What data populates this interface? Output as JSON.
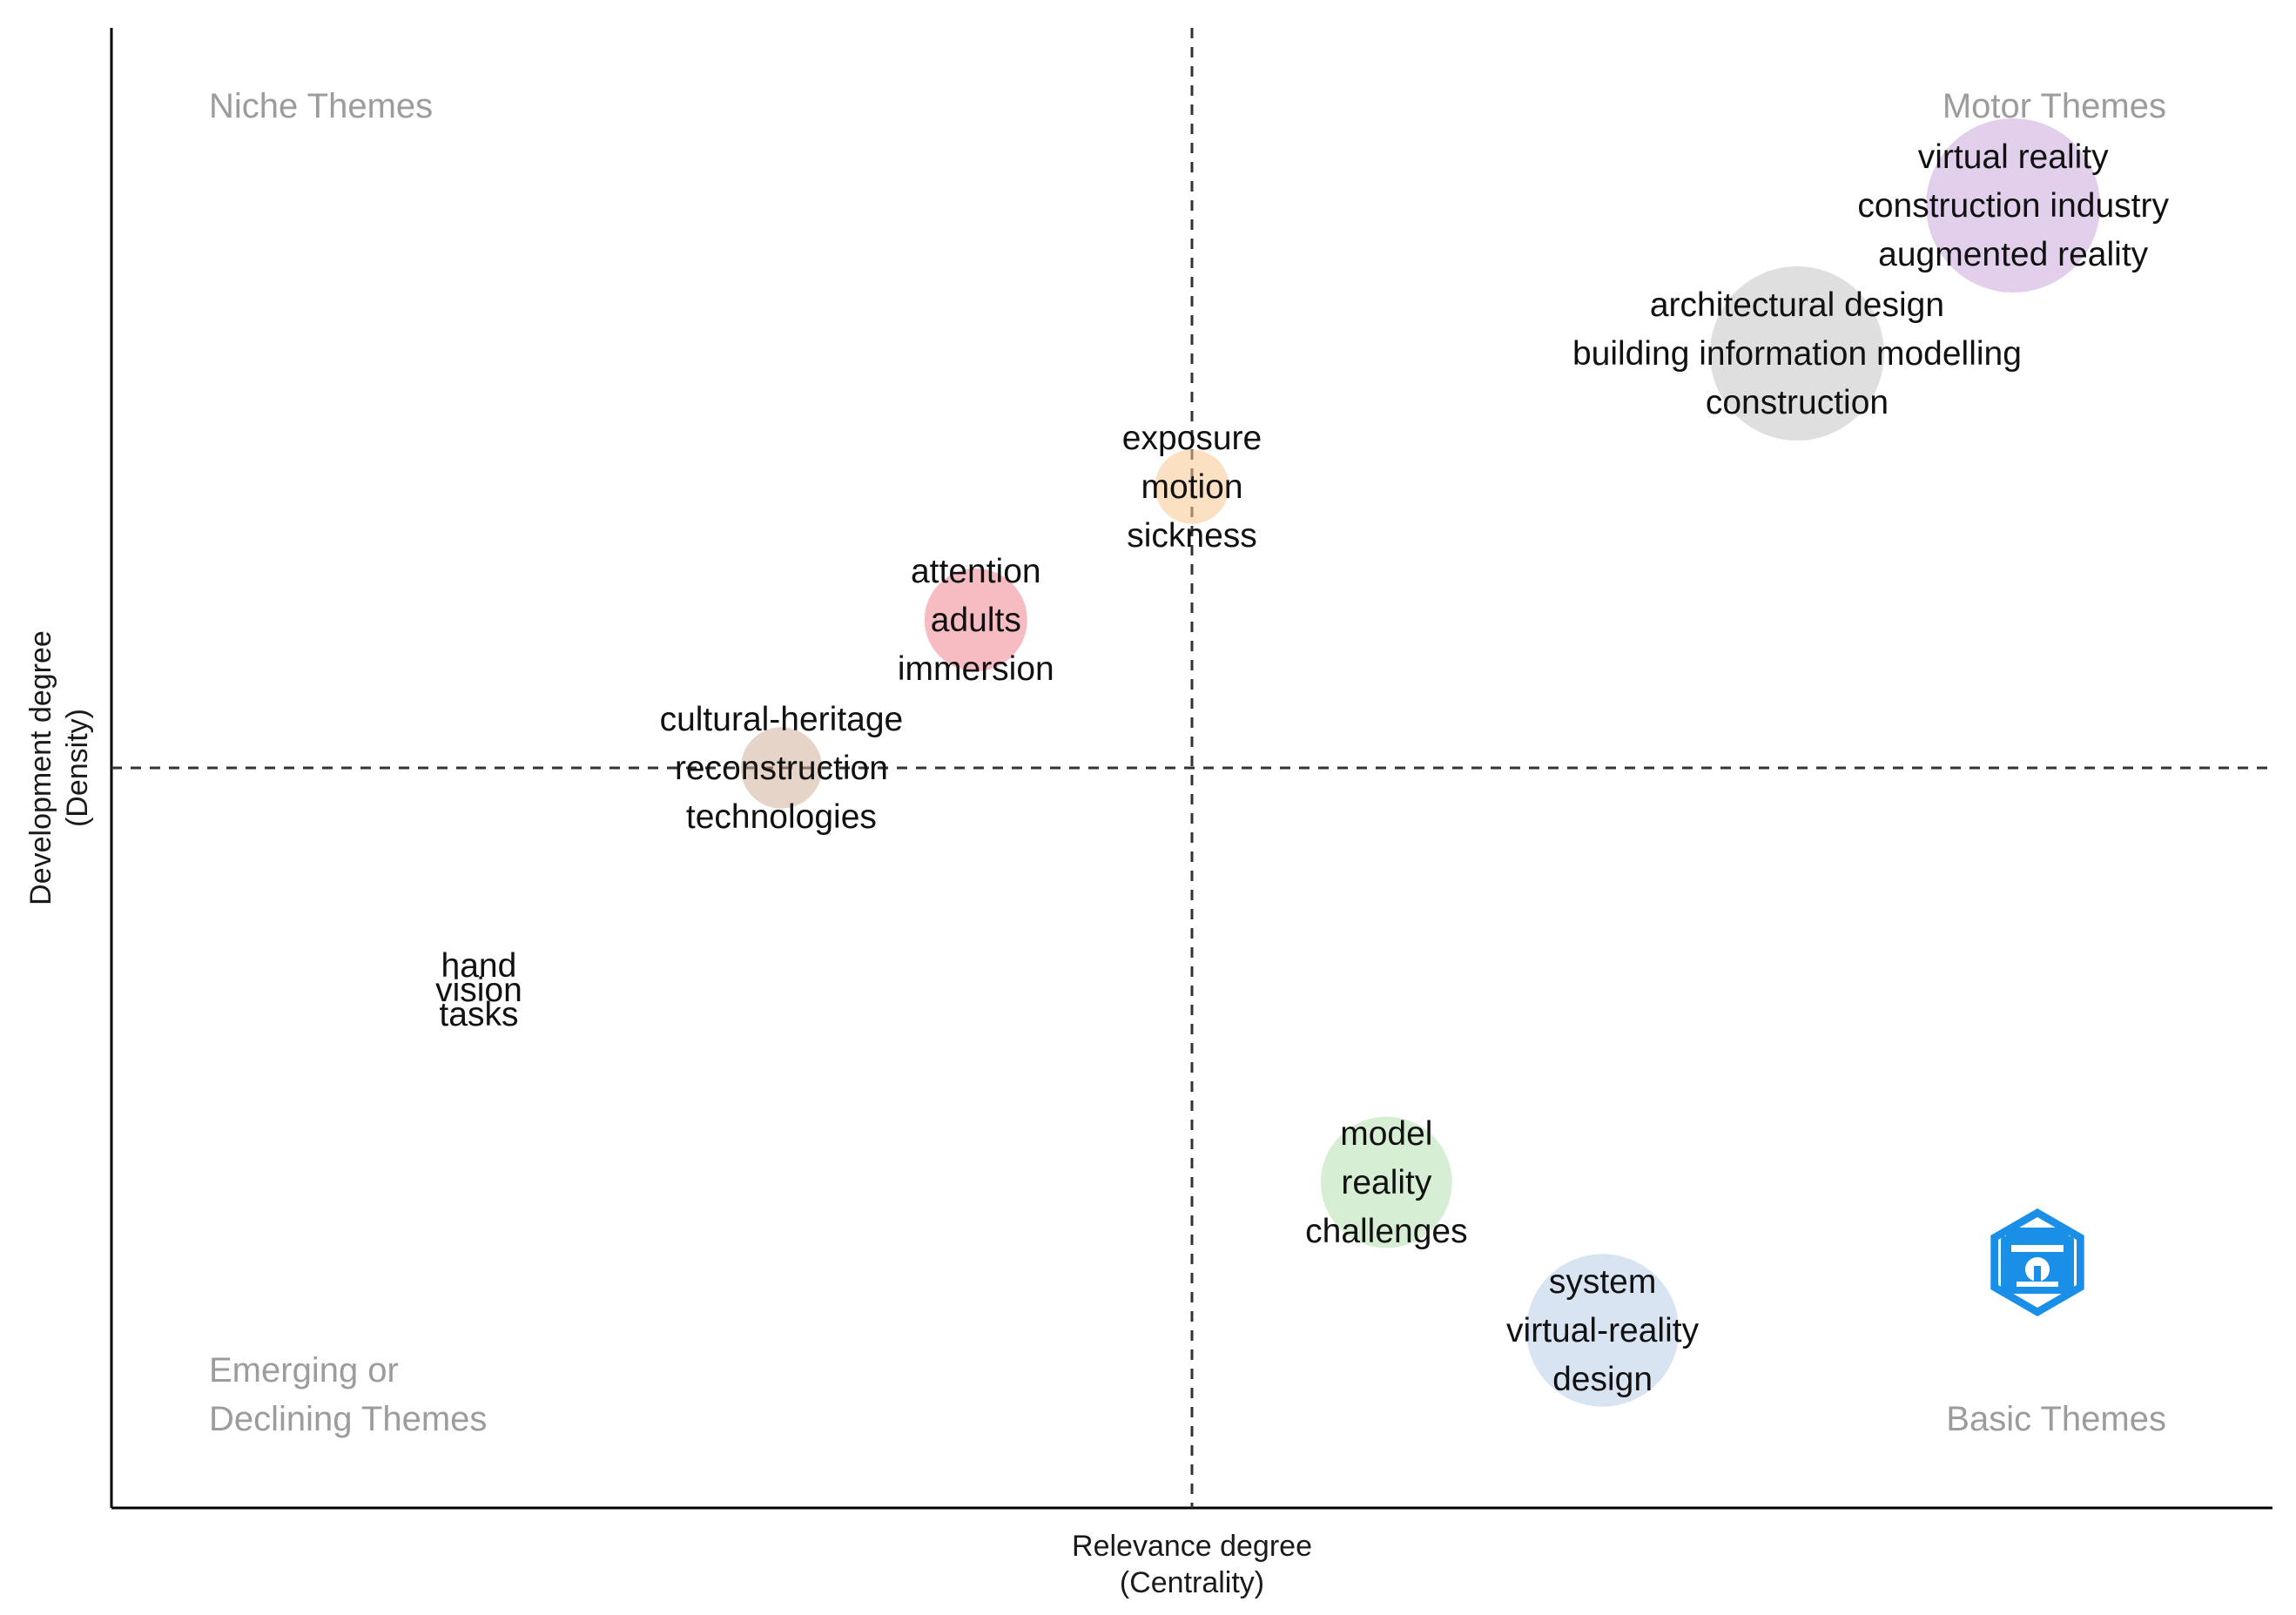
{
  "chart_data": {
    "type": "scatter",
    "subtype": "thematic-map",
    "xlabel": [
      "Relevance degree",
      "(Centrality)"
    ],
    "ylabel": [
      "Development degree",
      "(Density)"
    ],
    "xlim": [
      0,
      1
    ],
    "ylim": [
      0,
      1
    ],
    "reference_lines": {
      "x": 0.5,
      "y": 0.5,
      "style": "dashed"
    },
    "axis_ticks": false,
    "grid": false,
    "quadrants": [
      {
        "position": "top-left",
        "lines": [
          "Niche Themes"
        ]
      },
      {
        "position": "top-right",
        "lines": [
          "Motor Themes"
        ]
      },
      {
        "position": "bottom-left",
        "lines": [
          "Emerging or",
          "Declining Themes"
        ]
      },
      {
        "position": "bottom-right",
        "lines": [
          "Basic Themes"
        ]
      }
    ],
    "clusters": [
      {
        "x": 0.88,
        "y": 0.88,
        "size": 1.0,
        "color": "#c9a8dc",
        "terms": [
          "virtual reality",
          "construction industry",
          "augmented reality"
        ]
      },
      {
        "x": 0.78,
        "y": 0.78,
        "size": 1.0,
        "color": "#c4c4c4",
        "terms": [
          "architectural design",
          "building information modelling",
          "construction"
        ]
      },
      {
        "x": 0.5,
        "y": 0.69,
        "size": 0.3,
        "color": "#f7c98f",
        "terms": [
          "exposure",
          "motion",
          "sickness"
        ]
      },
      {
        "x": 0.4,
        "y": 0.6,
        "size": 0.5,
        "color": "#f0848f",
        "terms": [
          "attention",
          "adults",
          "immersion"
        ]
      },
      {
        "x": 0.31,
        "y": 0.5,
        "size": 0.35,
        "color": "#d4b09a",
        "terms": [
          "cultural-heritage",
          "reconstruction",
          "technologies"
        ]
      },
      {
        "x": 0.17,
        "y": 0.35,
        "size": 0.0,
        "color": "#b0b0b0",
        "terms": [
          "hand",
          "vision",
          "tasks"
        ]
      },
      {
        "x": 0.59,
        "y": 0.22,
        "size": 0.7,
        "color": "#b5e2b0",
        "terms": [
          "model",
          "reality",
          "challenges"
        ]
      },
      {
        "x": 0.69,
        "y": 0.12,
        "size": 0.85,
        "color": "#b8cde6",
        "terms": [
          "system",
          "virtual-reality",
          "design"
        ]
      }
    ]
  },
  "logo": {
    "icon": "hexagonal-logo-icon",
    "color": "#1a8fe8"
  }
}
